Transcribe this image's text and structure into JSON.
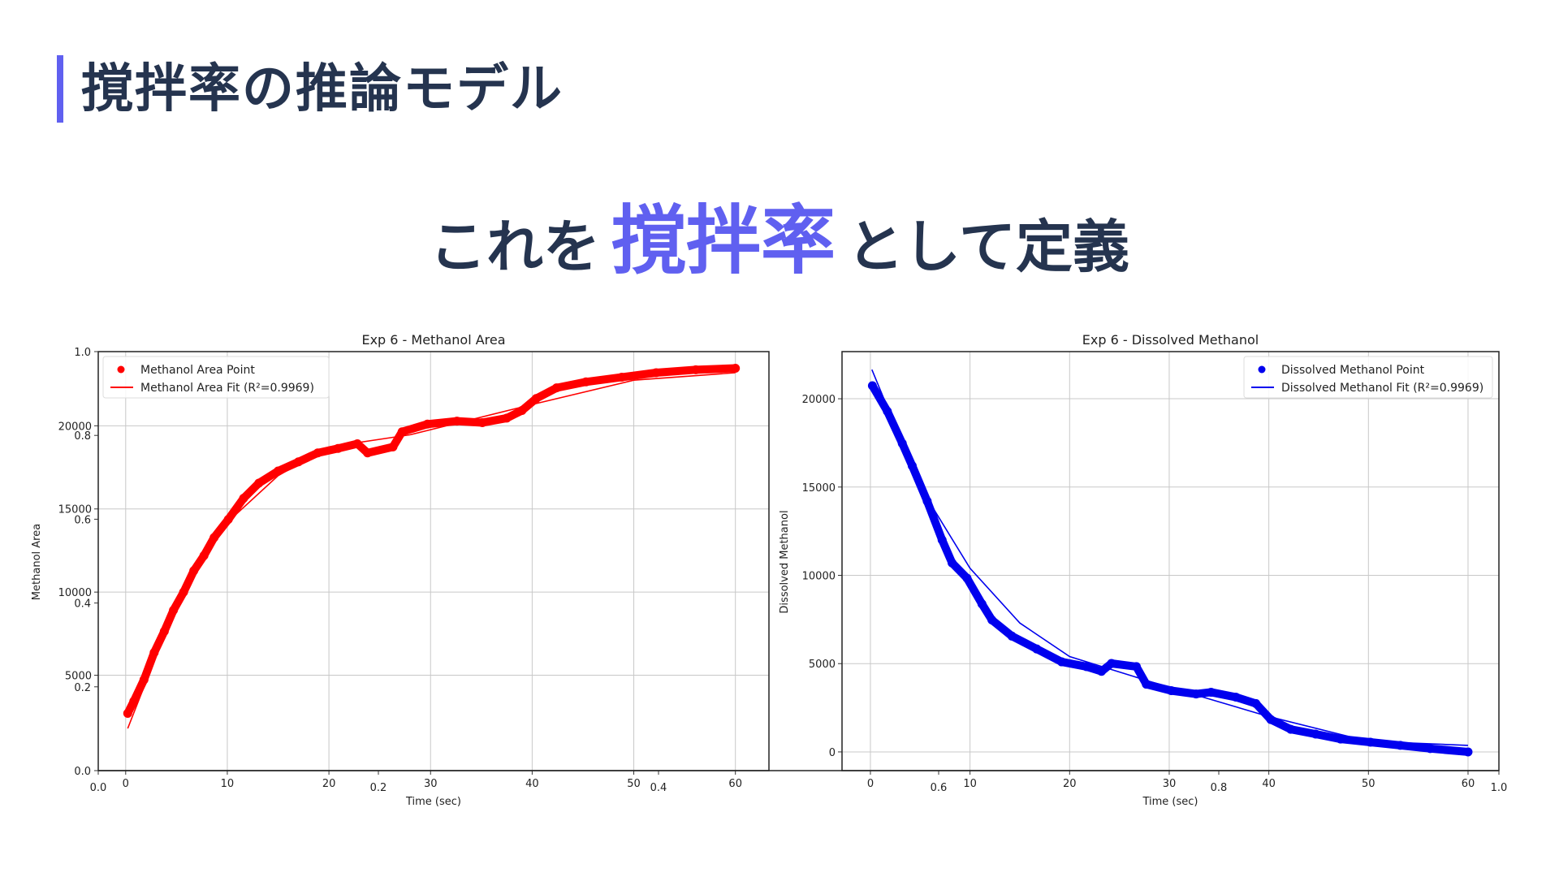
{
  "header": {
    "title": "撹拌率の推論モデル"
  },
  "subtitle": {
    "before": "これを",
    "highlight": "撹拌率",
    "after": "として定義"
  },
  "colors": {
    "text": "#25344f",
    "accent": "#6060f0",
    "red": "#ff0000",
    "blue": "#0000ee"
  },
  "overlay_axes": {
    "x_ticks": [
      "0.0",
      "0.2",
      "0.4",
      "0.6",
      "0.8",
      "1.0"
    ],
    "y_ticks": [
      "0.0",
      "0.2",
      "0.4",
      "0.6",
      "0.8",
      "1.0"
    ]
  },
  "chart_data": [
    {
      "type": "scatter",
      "title": "Exp 6 - Methanol Area",
      "xlabel": "Time (sec)",
      "ylabel": "Methanol Area",
      "xlim": [
        -2.7,
        63.3
      ],
      "ylim": [
        -735,
        24460
      ],
      "x_ticks": [
        0,
        10,
        20,
        30,
        40,
        50,
        60
      ],
      "y_ticks": [
        5000,
        10000,
        15000,
        20000
      ],
      "grid": true,
      "legend": "top-left",
      "series": [
        {
          "name": "Methanol Area Point",
          "kind": "points",
          "color": "#ff0000",
          "x": [
            0.2,
            0.8,
            1.8,
            2.8,
            3.8,
            4.7,
            5.7,
            6.7,
            7.7,
            8.7,
            10.1,
            11.6,
            13.1,
            15.0,
            17.0,
            18.9,
            20.9,
            22.8,
            23.8,
            26.3,
            27.2,
            29.7,
            32.6,
            35.1,
            37.5,
            39.0,
            40.4,
            42.4,
            45.3,
            48.8,
            52.2,
            56.1,
            60.0
          ],
          "y": [
            2710,
            3440,
            4730,
            6360,
            7640,
            8910,
            10000,
            11280,
            12190,
            13280,
            14370,
            15640,
            16550,
            17280,
            17830,
            18370,
            18640,
            18920,
            18370,
            18730,
            19640,
            20100,
            20280,
            20190,
            20460,
            20920,
            21640,
            22280,
            22640,
            22920,
            23190,
            23370,
            23460
          ]
        },
        {
          "name": "Methanol Area Fit (R²=0.9969)",
          "kind": "line",
          "color": "#ff0000",
          "x": [
            0.2,
            5,
            10,
            15,
            20,
            28,
            40,
            50,
            60
          ],
          "y": [
            1800,
            9300,
            14190,
            17000,
            18730,
            19460,
            21280,
            22740,
            23190
          ]
        }
      ]
    },
    {
      "type": "scatter",
      "title": "Exp 6 - Dissolved Methanol",
      "xlabel": "Time (sec)",
      "ylabel": "Dissolved Methanol",
      "xlim": [
        -2.85,
        63.1
      ],
      "ylim": [
        -1060,
        22670
      ],
      "x_ticks": [
        0,
        10,
        20,
        30,
        40,
        50,
        60
      ],
      "y_ticks": [
        0,
        5000,
        10000,
        15000,
        20000
      ],
      "grid": true,
      "legend": "top-right",
      "series": [
        {
          "name": "Dissolved Methanol Point",
          "kind": "points",
          "color": "#0000ee",
          "x": [
            0.2,
            1.7,
            3.2,
            4.2,
            5.7,
            7.2,
            8.2,
            9.7,
            11.2,
            12.2,
            14.2,
            16.7,
            19.2,
            21.7,
            23.2,
            24.2,
            26.7,
            27.7,
            30.2,
            32.7,
            34.2,
            36.7,
            38.7,
            40.2,
            42.2,
            44.7,
            47.2,
            50.2,
            53.2,
            56.2,
            60.0
          ],
          "y": [
            20740,
            19290,
            17470,
            16200,
            14200,
            12000,
            10700,
            9840,
            8380,
            7470,
            6560,
            5830,
            5100,
            4830,
            4560,
            5010,
            4830,
            3830,
            3470,
            3280,
            3380,
            3100,
            2740,
            1830,
            1280,
            1010,
            730,
            550,
            370,
            190,
            0
          ]
        },
        {
          "name": "Dissolved Methanol Fit (R²=0.9969)",
          "kind": "line",
          "color": "#0000ee",
          "x": [
            0.15,
            5,
            10,
            15,
            20,
            28,
            40,
            50,
            60
          ],
          "y": [
            21650,
            15000,
            10400,
            7300,
            5400,
            4000,
            2000,
            600,
            370
          ]
        }
      ]
    }
  ]
}
